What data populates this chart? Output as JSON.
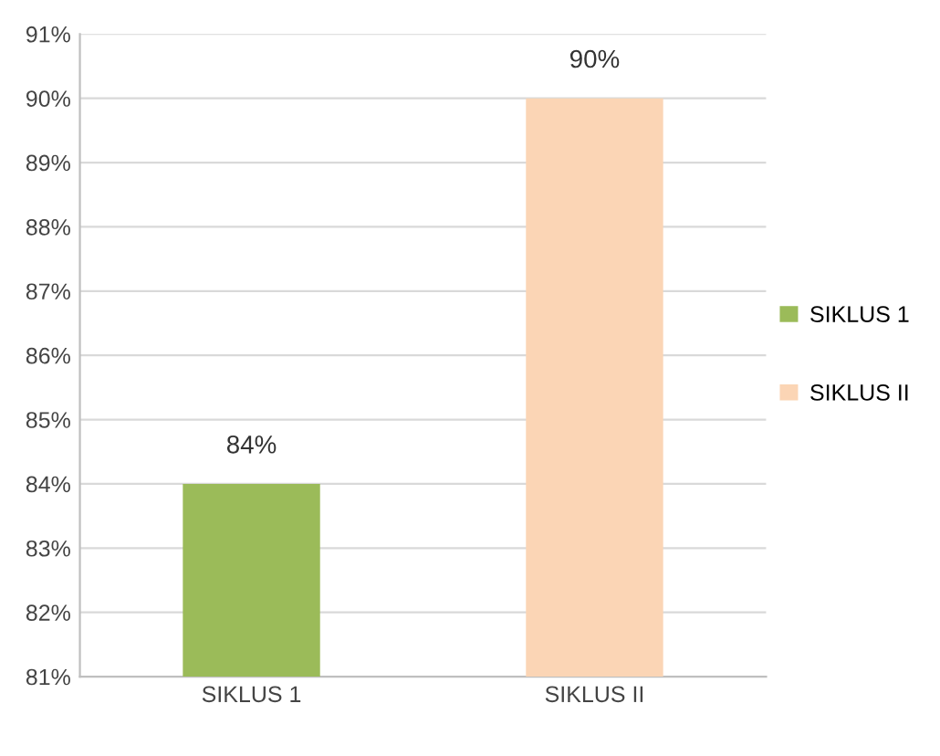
{
  "chart_data": {
    "type": "bar",
    "categories": [
      "SIKLUS 1",
      "SIKLUS II"
    ],
    "series": [
      {
        "name": "SIKLUS 1",
        "color": "#9bbb59",
        "values": [
          84,
          null
        ],
        "value_labels": [
          "84%",
          null
        ]
      },
      {
        "name": "SIKLUS II",
        "color": "#fbd5b5",
        "values": [
          null,
          90
        ],
        "value_labels": [
          null,
          "90%"
        ]
      }
    ],
    "ylim": [
      81,
      91
    ],
    "yticks": [
      {
        "value": 81,
        "label": "81%"
      },
      {
        "value": 82,
        "label": "82%"
      },
      {
        "value": 83,
        "label": "83%"
      },
      {
        "value": 84,
        "label": "84%"
      },
      {
        "value": 85,
        "label": "85%"
      },
      {
        "value": 86,
        "label": "86%"
      },
      {
        "value": 87,
        "label": "87%"
      },
      {
        "value": 88,
        "label": "88%"
      },
      {
        "value": 89,
        "label": "89%"
      },
      {
        "value": 90,
        "label": "90%"
      },
      {
        "value": 91,
        "label": "91%"
      }
    ],
    "grid": "y",
    "legend": "right"
  }
}
